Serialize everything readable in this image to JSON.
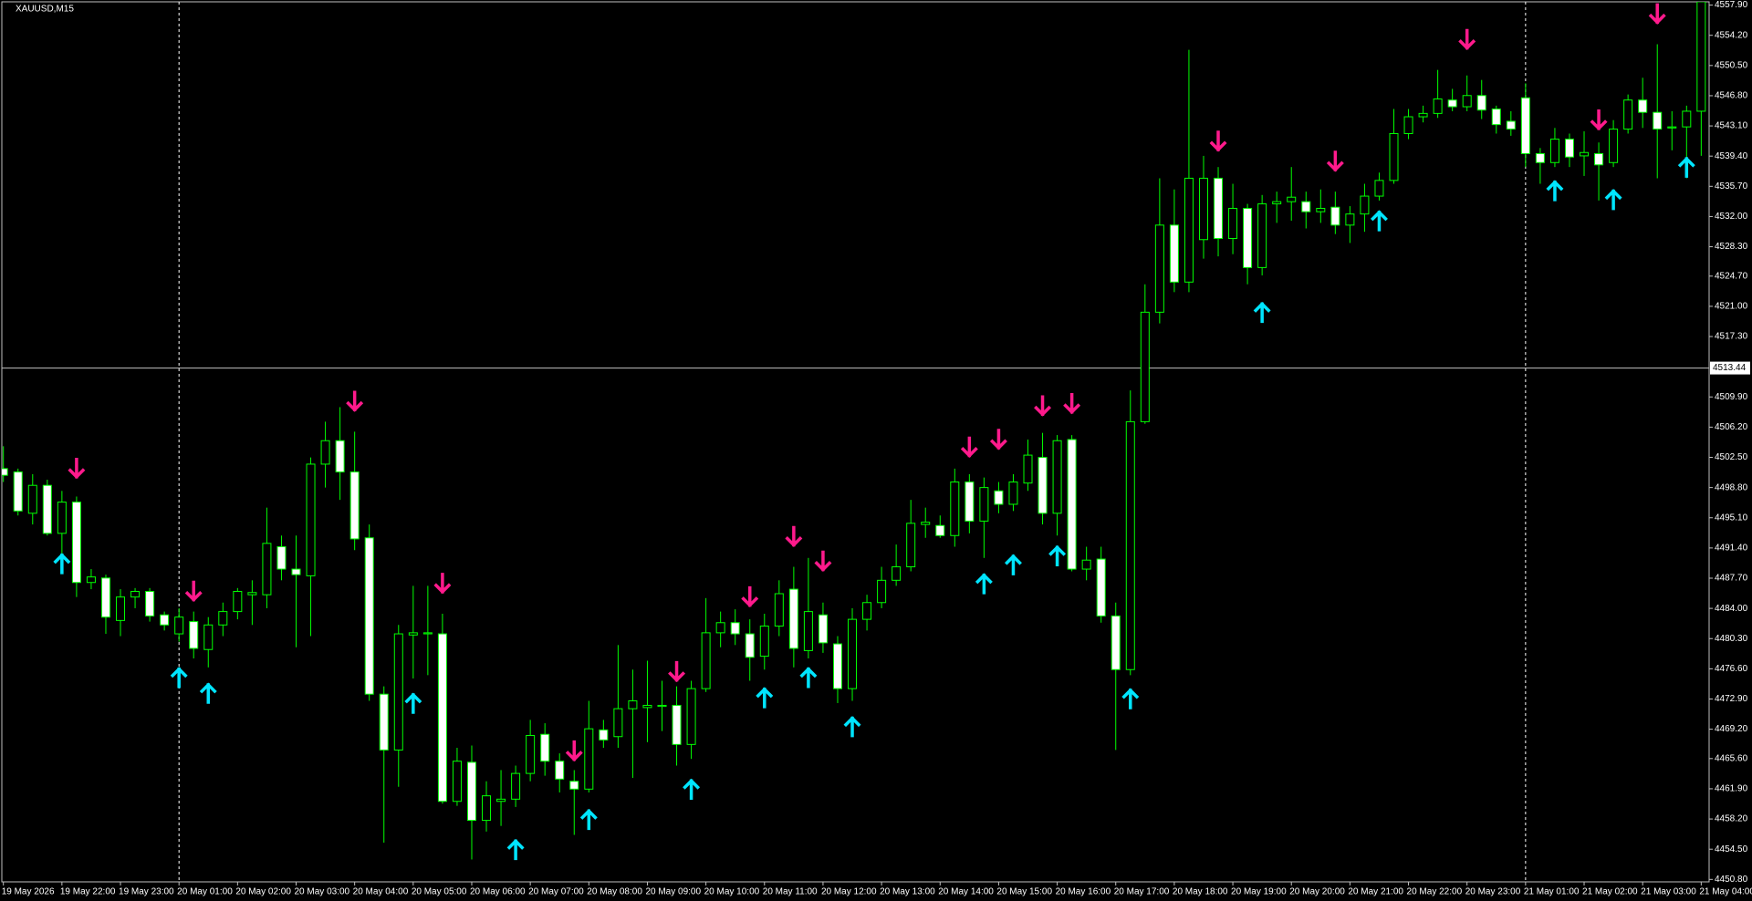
{
  "chart_data": {
    "type": "candlestick",
    "title": "XAUUSD,M15",
    "categories": [
      "19 May 2026",
      null,
      null,
      null,
      "19 May 22:00",
      null,
      null,
      null,
      "19 May 23:00",
      null,
      null,
      null,
      "20 May 01:00",
      null,
      null,
      null,
      "20 May 02:00",
      null,
      null,
      null,
      "20 May 03:00",
      null,
      null,
      null,
      "20 May 04:00",
      null,
      null,
      null,
      "20 May 05:00",
      null,
      null,
      null,
      "20 May 06:00",
      null,
      null,
      null,
      "20 May 07:00",
      null,
      null,
      null,
      "20 May 08:00",
      null,
      null,
      null,
      "20 May 09:00",
      null,
      null,
      null,
      "20 May 10:00",
      null,
      null,
      null,
      "20 May 11:00",
      null,
      null,
      null,
      "20 May 12:00",
      null,
      null,
      null,
      "20 May 13:00",
      null,
      null,
      null,
      "20 May 14:00",
      null,
      null,
      null,
      "20 May 15:00",
      null,
      null,
      null,
      "20 May 16:00",
      null,
      null,
      null,
      "20 May 17:00",
      null,
      null,
      null,
      "20 May 18:00",
      null,
      null,
      null,
      "20 May 19:00",
      null,
      null,
      null,
      "20 May 20:00",
      null,
      null,
      null,
      "20 May 21:00",
      null,
      null,
      null,
      "20 May 22:00",
      null,
      null,
      null,
      "20 May 23:00",
      null,
      null,
      null,
      "21 May 01:00",
      null,
      null,
      null,
      "21 May 02:00",
      null,
      null,
      null,
      "21 May 03:00",
      null,
      null,
      null,
      "21 May 04:00"
    ],
    "open": [
      4501.12,
      4500.71,
      4495.65,
      4499.07,
      4493.19,
      4497.02,
      4487.17,
      4487.72,
      4482.52,
      4485.39,
      4486.08,
      4483.2,
      4480.88,
      4482.38,
      4478.96,
      4481.97,
      4483.61,
      4485.67,
      4485.67,
      4491.55,
      4488.81,
      4487.99,
      4501.67,
      4504.54,
      4500.71,
      4492.64,
      4473.49,
      4466.65,
      4480.74,
      4480.88,
      4480.88,
      4460.36,
      4465.15,
      4458.03,
      4460.36,
      4460.63,
      4463.78,
      4468.57,
      4465.28,
      4462.82,
      4461.86,
      4469.11,
      4468.29,
      4471.71,
      4471.85,
      4471.99,
      4472.12,
      4467.33,
      4474.17,
      4481.01,
      4482.25,
      4480.88,
      4478.14,
      4481.83,
      4486.35,
      4478.83,
      4483.2,
      4479.65,
      4474.17,
      4482.66,
      4484.71,
      4487.44,
      4489.09,
      4494.28,
      4494.15,
      4492.92,
      4499.48,
      4494.69,
      4498.39,
      4496.75,
      4499.35,
      4502.49,
      4495.65,
      4504.68,
      4488.81,
      4490.04,
      4483.07,
      4476.5,
      4506.87,
      4520.28,
      4530.95,
      4523.97,
      4529.17,
      4536.69,
      4529.31,
      4533.0,
      4525.75,
      4533.55,
      4533.82,
      4533.82,
      4532.59,
      4533.14,
      4530.95,
      4532.31,
      4534.5,
      4536.42,
      4542.16,
      4544.22,
      4544.63,
      4546.27,
      4545.45,
      4546.82,
      4545.17,
      4543.67,
      4546.54,
      4539.7,
      4538.61,
      4541.48,
      4539.43,
      4539.7,
      4538.61,
      4542.71,
      4546.27,
      4544.76,
      4542.85,
      4542.98,
      4544.9
    ],
    "high": [
      4503.86,
      4501.12,
      4500.44,
      4499.76,
      4498.39,
      4497.7,
      4488.81,
      4488.13,
      4486.35,
      4486.49,
      4486.49,
      4483.61,
      4484.02,
      4483.61,
      4482.93,
      4484.71,
      4486.49,
      4487.44,
      4496.34,
      4492.92,
      4492.92,
      4502.49,
      4506.87,
      4508.65,
      4505.64,
      4494.28,
      4474.45,
      4481.97,
      4486.76,
      4486.76,
      4483.34,
      4466.92,
      4467.2,
      4462.82,
      4464.19,
      4464.74,
      4470.34,
      4469.93,
      4466.24,
      4464.19,
      4472.67,
      4470.34,
      4479.51,
      4476.5,
      4477.59,
      4475.13,
      4474.45,
      4475.13,
      4485.26,
      4483.61,
      4483.89,
      4482.66,
      4483.34,
      4487.44,
      4489.09,
      4490.18,
      4484.71,
      4480.6,
      4484.02,
      4485.67,
      4489.09,
      4491.82,
      4497.29,
      4496.34,
      4495.38,
      4501.12,
      4500.44,
      4500.03,
      4499.48,
      4500.44,
      4504.68,
      4505.5,
      4505.23,
      4505.23,
      4491.55,
      4491.55,
      4484.71,
      4510.7,
      4523.7,
      4536.69,
      4535.32,
      4552.42,
      4539.43,
      4538.06,
      4536.01,
      4533.55,
      4534.64,
      4535.05,
      4538.06,
      4535.05,
      4535.32,
      4535.05,
      4533.27,
      4536.01,
      4537.38,
      4545.17,
      4545.17,
      4545.58,
      4549.96,
      4547.64,
      4549.28,
      4548.73,
      4545.58,
      4544.9,
      4548.32,
      4540.39,
      4542.85,
      4542.16,
      4542.44,
      4541.07,
      4543.81,
      4546.95,
      4549.0,
      4553.11,
      4544.9,
      4545.58,
      4559.26
    ],
    "low": [
      4499.48,
      4495.38,
      4494.28,
      4492.92,
      4489.5,
      4485.39,
      4486.35,
      4480.88,
      4480.6,
      4484.02,
      4482.38,
      4481.29,
      4479.92,
      4477.87,
      4476.77,
      4480.6,
      4482.66,
      4481.97,
      4484.02,
      4487.44,
      4479.24,
      4480.6,
      4498.8,
      4497.29,
      4491.14,
      4472.67,
      4455.3,
      4462.14,
      4475.41,
      4475.82,
      4460.08,
      4459.81,
      4453.24,
      4456.66,
      4457.35,
      4459.67,
      4462.82,
      4463.5,
      4461.45,
      4456.25,
      4461.45,
      4466.92,
      4466.92,
      4463.23,
      4467.61,
      4468.98,
      4464.74,
      4465.56,
      4473.76,
      4479.24,
      4479.51,
      4475.13,
      4476.5,
      4480.6,
      4476.77,
      4477.87,
      4478.55,
      4472.4,
      4472.67,
      4481.29,
      4484.02,
      4486.76,
      4488.54,
      4492.64,
      4492.64,
      4491.55,
      4493.19,
      4490.18,
      4495.65,
      4495.93,
      4498.39,
      4494.28,
      4492.92,
      4488.54,
      4487.44,
      4482.25,
      4466.65,
      4475.82,
      4506.6,
      4518.91,
      4522.74,
      4522.74,
      4526.84,
      4527.12,
      4527.39,
      4523.7,
      4524.79,
      4531.22,
      4531.49,
      4530.54,
      4531.22,
      4529.85,
      4528.76,
      4530.13,
      4533.96,
      4536.01,
      4541.48,
      4543.53,
      4544.08,
      4544.9,
      4544.9,
      4543.94,
      4542.16,
      4541.89,
      4538.06,
      4536.01,
      4538.06,
      4538.06,
      4536.97,
      4533.96,
      4538.06,
      4542.16,
      4542.85,
      4536.69,
      4540.11,
      4536.69,
      4539.43
    ],
    "close": [
      4500.3,
      4495.93,
      4499.07,
      4493.19,
      4497.02,
      4487.17,
      4487.85,
      4482.93,
      4485.39,
      4486.08,
      4483.07,
      4481.97,
      4482.93,
      4479.1,
      4481.97,
      4483.61,
      4486.08,
      4485.94,
      4491.96,
      4488.81,
      4488.13,
      4501.67,
      4504.54,
      4500.71,
      4492.51,
      4473.49,
      4466.65,
      4480.88,
      4481.01,
      4481.01,
      4460.36,
      4465.28,
      4458.03,
      4461.04,
      4460.63,
      4463.78,
      4468.43,
      4465.28,
      4463.09,
      4461.86,
      4469.25,
      4467.88,
      4471.71,
      4472.67,
      4472.12,
      4472.12,
      4467.33,
      4474.17,
      4481.01,
      4482.25,
      4480.88,
      4478.01,
      4481.83,
      4485.8,
      4479.1,
      4483.61,
      4479.78,
      4474.17,
      4482.66,
      4484.71,
      4487.44,
      4489.09,
      4494.42,
      4494.56,
      4492.92,
      4499.48,
      4494.69,
      4498.8,
      4496.75,
      4499.48,
      4502.77,
      4495.65,
      4504.54,
      4488.81,
      4489.91,
      4483.07,
      4476.5,
      4506.87,
      4520.28,
      4530.95,
      4523.97,
      4536.69,
      4536.69,
      4529.31,
      4533.0,
      4525.75,
      4533.55,
      4533.82,
      4534.37,
      4532.59,
      4533.0,
      4530.95,
      4532.31,
      4534.5,
      4536.42,
      4542.16,
      4544.22,
      4544.63,
      4546.4,
      4545.45,
      4546.82,
      4545.04,
      4543.26,
      4542.71,
      4539.7,
      4538.61,
      4541.48,
      4539.29,
      4539.84,
      4538.33,
      4542.71,
      4546.27,
      4544.76,
      4542.71,
      4542.98,
      4544.9,
      4558.31
    ],
    "sell_signals": [
      null,
      null,
      null,
      null,
      null,
      4501.13,
      null,
      null,
      null,
      null,
      null,
      null,
      null,
      4486.08,
      null,
      null,
      null,
      null,
      null,
      null,
      null,
      null,
      null,
      null,
      4509.34,
      null,
      null,
      null,
      null,
      null,
      4487.04,
      null,
      null,
      null,
      null,
      null,
      null,
      null,
      null,
      4466.52,
      null,
      null,
      null,
      null,
      null,
      null,
      4476.23,
      null,
      null,
      null,
      null,
      4485.4,
      null,
      null,
      4492.78,
      null,
      4489.77,
      null,
      null,
      null,
      null,
      null,
      null,
      null,
      null,
      null,
      4503.73,
      null,
      4504.68,
      null,
      null,
      4508.79,
      null,
      4509.06,
      null,
      null,
      null,
      null,
      null,
      null,
      null,
      null,
      null,
      4541.21,
      null,
      null,
      null,
      null,
      null,
      null,
      null,
      4538.75,
      null,
      null,
      null,
      null,
      null,
      null,
      null,
      null,
      4553.66,
      null,
      null,
      null,
      null,
      null,
      null,
      null,
      null,
      4543.81,
      null,
      null,
      null,
      4556.81,
      null,
      null,
      null
    ],
    "buy_signals": [
      null,
      null,
      null,
      null,
      4489.5,
      null,
      null,
      null,
      null,
      null,
      null,
      null,
      4475.55,
      null,
      4473.63,
      null,
      null,
      null,
      null,
      null,
      null,
      null,
      null,
      null,
      null,
      null,
      null,
      null,
      4472.4,
      null,
      null,
      null,
      null,
      null,
      null,
      4454.48,
      null,
      null,
      null,
      null,
      4458.17,
      null,
      null,
      null,
      null,
      null,
      null,
      4461.87,
      null,
      null,
      null,
      null,
      4473.08,
      null,
      null,
      4475.55,
      null,
      null,
      4469.53,
      null,
      null,
      null,
      null,
      null,
      null,
      null,
      null,
      4487.04,
      null,
      4489.36,
      null,
      null,
      4490.46,
      null,
      null,
      null,
      null,
      4472.95,
      null,
      null,
      null,
      null,
      null,
      null,
      null,
      null,
      4520.28,
      null,
      null,
      null,
      null,
      null,
      null,
      null,
      4531.5,
      null,
      null,
      null,
      null,
      null,
      null,
      null,
      null,
      null,
      null,
      null,
      4535.19,
      null,
      null,
      null,
      4534.1,
      null,
      null,
      null,
      null,
      4538.06,
      null
    ],
    "current_price": 4513.44,
    "ylim": [
      4450.5,
      4558.3
    ],
    "yticks": [
      {
        "value": 4557.9,
        "label": "4557.90"
      },
      {
        "value": 4554.2,
        "label": "4554.20"
      },
      {
        "value": 4550.5,
        "label": "4550.50"
      },
      {
        "value": 4546.8,
        "label": "4546.80"
      },
      {
        "value": 4543.1,
        "label": "4543.10"
      },
      {
        "value": 4539.4,
        "label": "4539.40"
      },
      {
        "value": 4535.7,
        "label": "4535.70"
      },
      {
        "value": 4532.0,
        "label": "4532.00"
      },
      {
        "value": 4528.3,
        "label": "4528.30"
      },
      {
        "value": 4524.7,
        "label": "4524.70"
      },
      {
        "value": 4521.0,
        "label": "4521.00"
      },
      {
        "value": 4517.3,
        "label": "4517.30"
      },
      {
        "value": 4509.9,
        "label": "4509.90"
      },
      {
        "value": 4506.2,
        "label": "4506.20"
      },
      {
        "value": 4502.5,
        "label": "4502.50"
      },
      {
        "value": 4498.8,
        "label": "4498.80"
      },
      {
        "value": 4495.1,
        "label": "4495.10"
      },
      {
        "value": 4491.4,
        "label": "4491.40"
      },
      {
        "value": 4487.7,
        "label": "4487.70"
      },
      {
        "value": 4484.0,
        "label": "4484.00"
      },
      {
        "value": 4480.3,
        "label": "4480.30"
      },
      {
        "value": 4476.6,
        "label": "4476.60"
      },
      {
        "value": 4472.9,
        "label": "4472.90"
      },
      {
        "value": 4469.2,
        "label": "4469.20"
      },
      {
        "value": 4465.6,
        "label": "4465.60"
      },
      {
        "value": 4461.9,
        "label": "4461.90"
      },
      {
        "value": 4458.2,
        "label": "4458.20"
      },
      {
        "value": 4454.5,
        "label": "4454.50"
      },
      {
        "value": 4450.8,
        "label": "4450.80"
      }
    ],
    "grid": false,
    "bull_color": "#000000",
    "bear_color": "#ffffff",
    "wick_color": "#00ff00",
    "sell_color": "#ff1a8c",
    "buy_color": "#00e5ff"
  }
}
